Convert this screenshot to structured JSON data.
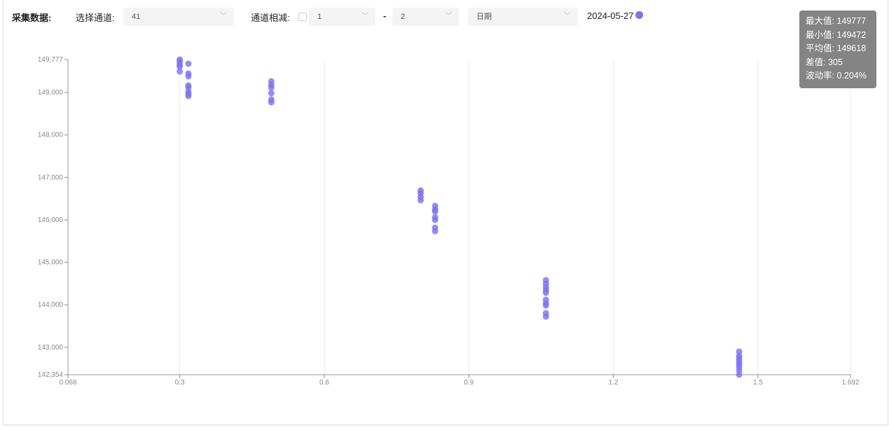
{
  "header": {
    "title": "采集数据:",
    "channel_label": "选择通道:",
    "channel_value": "41",
    "subtract_label": "通道相减:",
    "subtract_checked": false,
    "subtract_a": "1",
    "dash": "-",
    "subtract_b": "2",
    "date_placeholder": "日期",
    "date_legend": "2024-05-27",
    "legend_color": "#7b72ee"
  },
  "tooltip": {
    "lines": [
      "最大值: 149777",
      "最小值: 149472",
      "平均值: 149618",
      "差值: 305",
      "波动率: 0.204%"
    ]
  },
  "chart_data": {
    "type": "scatter",
    "xlim": [
      0.068,
      1.692
    ],
    "ylim": [
      142354,
      149777
    ],
    "x_ticks": [
      "0.068",
      "0.3",
      "0.6",
      "0.9",
      "1.2",
      "1.5",
      "1.692"
    ],
    "x_tick_values": [
      0.068,
      0.3,
      0.6,
      0.9,
      1.2,
      1.5,
      1.692
    ],
    "y_ticks": [
      "142,354",
      "143,000",
      "144,000",
      "145,000",
      "146,000",
      "147,000",
      "148,000",
      "149,000",
      "149,777"
    ],
    "y_tick_values": [
      142354,
      143000,
      144000,
      145000,
      146000,
      147000,
      148000,
      149000,
      149777
    ],
    "grid": "vertical",
    "series": [
      {
        "name": "2024-05-27",
        "color": "#7b72ee",
        "points": [
          [
            0.3,
            149777
          ],
          [
            0.3,
            149727
          ],
          [
            0.3,
            149661
          ],
          [
            0.3,
            149612
          ],
          [
            0.3,
            149496
          ],
          [
            0.318,
            149678
          ],
          [
            0.318,
            149447
          ],
          [
            0.318,
            149381
          ],
          [
            0.318,
            149166
          ],
          [
            0.318,
            149117
          ],
          [
            0.318,
            149018
          ],
          [
            0.318,
            148968
          ],
          [
            0.318,
            148919
          ],
          [
            0.49,
            149265
          ],
          [
            0.49,
            149183
          ],
          [
            0.49,
            149117
          ],
          [
            0.49,
            148985
          ],
          [
            0.49,
            148836
          ],
          [
            0.49,
            148770
          ],
          [
            0.8,
            146692
          ],
          [
            0.8,
            146627
          ],
          [
            0.8,
            146544
          ],
          [
            0.8,
            146462
          ],
          [
            0.83,
            146329
          ],
          [
            0.83,
            146246
          ],
          [
            0.83,
            146197
          ],
          [
            0.83,
            146065
          ],
          [
            0.83,
            145999
          ],
          [
            0.83,
            145817
          ],
          [
            0.83,
            145735
          ],
          [
            1.06,
            144579
          ],
          [
            1.06,
            144497
          ],
          [
            1.06,
            144414
          ],
          [
            1.06,
            144349
          ],
          [
            1.06,
            144283
          ],
          [
            1.06,
            144118
          ],
          [
            1.06,
            144035
          ],
          [
            1.06,
            143985
          ],
          [
            1.06,
            143804
          ],
          [
            1.06,
            143722
          ],
          [
            1.461,
            142897
          ],
          [
            1.461,
            142798
          ],
          [
            1.461,
            142732
          ],
          [
            1.461,
            142666
          ],
          [
            1.461,
            142600
          ],
          [
            1.461,
            142534
          ],
          [
            1.461,
            142451
          ],
          [
            1.461,
            142354
          ]
        ]
      }
    ]
  }
}
